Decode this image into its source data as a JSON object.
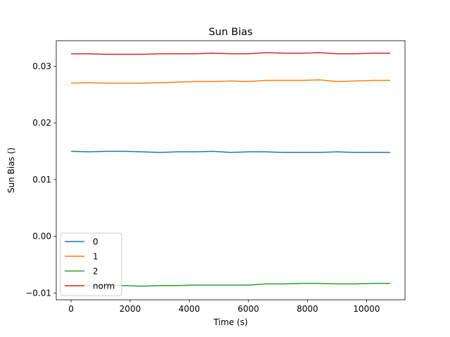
{
  "chart_data": {
    "type": "line",
    "title": "Sun Bias",
    "xlabel": "Time (s)",
    "ylabel": "Sun Bias ()",
    "xlim": [
      -500,
      11300
    ],
    "ylim": [
      -0.0112,
      0.0345
    ],
    "xticks": [
      0,
      2000,
      4000,
      6000,
      8000,
      10000
    ],
    "xtick_labels": [
      "0",
      "2000",
      "4000",
      "6000",
      "8000",
      "10000"
    ],
    "yticks": [
      -0.01,
      0.0,
      0.01,
      0.02,
      0.03
    ],
    "ytick_labels": [
      "−0.01",
      "0.00",
      "0.01",
      "0.02",
      "0.03"
    ],
    "grid": false,
    "legend_position": "lower left",
    "x": [
      0,
      600,
      1200,
      1800,
      2400,
      3000,
      3600,
      4200,
      4800,
      5400,
      6000,
      6600,
      7200,
      7800,
      8400,
      9000,
      9600,
      10200,
      10800
    ],
    "series": [
      {
        "name": "0",
        "color": "#1f77b4",
        "values": [
          0.015,
          0.0149,
          0.015,
          0.015,
          0.0149,
          0.0148,
          0.0149,
          0.0149,
          0.015,
          0.0148,
          0.0149,
          0.0149,
          0.0148,
          0.0148,
          0.0148,
          0.0149,
          0.0148,
          0.0148,
          0.0148
        ]
      },
      {
        "name": "1",
        "color": "#ff7f0e",
        "values": [
          0.027,
          0.0271,
          0.027,
          0.027,
          0.027,
          0.0271,
          0.0272,
          0.0273,
          0.0273,
          0.0274,
          0.0273,
          0.0275,
          0.0275,
          0.0275,
          0.0276,
          0.0273,
          0.0274,
          0.0275,
          0.0275
        ]
      },
      {
        "name": "2",
        "color": "#2ca02c",
        "values": [
          -0.0087,
          -0.0087,
          -0.0087,
          -0.0087,
          -0.0088,
          -0.0087,
          -0.0087,
          -0.0086,
          -0.0086,
          -0.0086,
          -0.0086,
          -0.0084,
          -0.0084,
          -0.0083,
          -0.0083,
          -0.0084,
          -0.0084,
          -0.0083,
          -0.0083
        ]
      },
      {
        "name": "norm",
        "color": "#d62728",
        "values": [
          0.0322,
          0.0322,
          0.0321,
          0.0321,
          0.0321,
          0.0322,
          0.0322,
          0.0322,
          0.0323,
          0.0322,
          0.0322,
          0.0324,
          0.0323,
          0.0323,
          0.0324,
          0.0322,
          0.0322,
          0.0323,
          0.0323
        ]
      }
    ]
  }
}
